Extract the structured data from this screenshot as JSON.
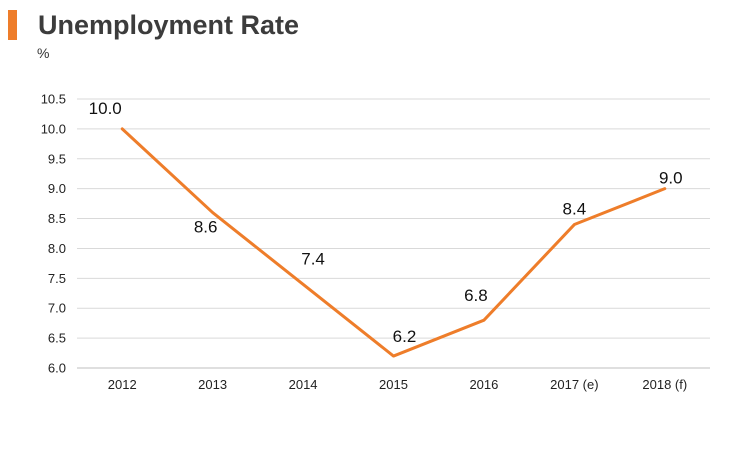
{
  "chart_data": {
    "type": "line",
    "title": "Unemployment Rate",
    "unit": "%",
    "categories": [
      "2012",
      "2013",
      "2014",
      "2015",
      "2016",
      "2017 (e)",
      "2018 (f)"
    ],
    "series": [
      {
        "values": [
          10.0,
          8.6,
          7.4,
          6.2,
          6.8,
          8.4,
          9.0
        ],
        "labels": [
          "10.0",
          "8.6",
          "7.4",
          "6.2",
          "6.8",
          "8.4",
          "9.0"
        ]
      }
    ],
    "y_ticks": [
      "6.0",
      "6.5",
      "7.0",
      "7.5",
      "8.0",
      "8.5",
      "9.0",
      "9.5",
      "10.0",
      "10.5"
    ],
    "ylim": [
      6.0,
      10.5
    ],
    "grid": true,
    "legend": "none",
    "colors": {
      "accent": "#ee7d2a",
      "line": "#ee7d2a",
      "grid": "#d9d9d9",
      "axis": "#bfbfbf"
    }
  }
}
